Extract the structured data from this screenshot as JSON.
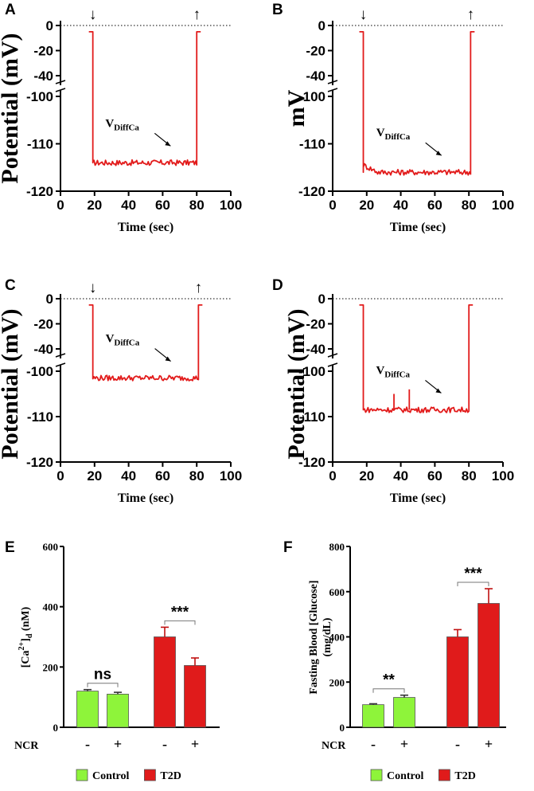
{
  "chart_data": [
    {
      "panel": "A",
      "type": "line",
      "ylabel": "Potential (mV)",
      "xlabel": "Time (sec)",
      "xticks": [
        "0",
        "20",
        "40",
        "60",
        "80",
        "100"
      ],
      "yticks_top": [
        "0",
        "-20",
        "-40"
      ],
      "yticks_bottom": [
        "-100",
        "-110",
        "-120"
      ],
      "xlim": [
        0,
        100
      ],
      "ylim_top": [
        -50,
        0
      ],
      "ylim_bottom": [
        -120,
        -100
      ],
      "annotation": {
        "main": "V",
        "sub": "DiffCa"
      },
      "baseline_mV": -5,
      "plateau_mV": -114,
      "step_on_sec": 19,
      "step_off_sec": 80,
      "markers": {
        "down_arrow": "↓",
        "up_arrow": "↑"
      }
    },
    {
      "panel": "B",
      "type": "line",
      "ylabel": "mV",
      "xlabel": "Time (sec)",
      "xticks": [
        "0",
        "20",
        "40",
        "60",
        "80",
        "100"
      ],
      "yticks_top": [
        "0",
        "-20",
        "-40"
      ],
      "yticks_bottom": [
        "-100",
        "-110",
        "-120"
      ],
      "xlim": [
        0,
        100
      ],
      "ylim_top": [
        -50,
        0
      ],
      "ylim_bottom": [
        -120,
        -100
      ],
      "annotation": {
        "main": "V",
        "sub": "DiffCa"
      },
      "baseline_mV": -5,
      "plateau_mV": -116,
      "step_on_sec": 18,
      "step_off_sec": 81,
      "markers": {
        "down_arrow": "↓",
        "up_arrow": "↑"
      }
    },
    {
      "panel": "C",
      "type": "line",
      "ylabel": "Potential (mV)",
      "xlabel": "Time (sec)",
      "xticks": [
        "0",
        "20",
        "40",
        "60",
        "80",
        "100"
      ],
      "yticks_top": [
        "0",
        "-20",
        "-40"
      ],
      "yticks_bottom": [
        "-100",
        "-110",
        "-120"
      ],
      "xlim": [
        0,
        100
      ],
      "ylim_top": [
        -50,
        0
      ],
      "ylim_bottom": [
        -120,
        -100
      ],
      "annotation": {
        "main": "V",
        "sub": "DiffCa"
      },
      "baseline_mV": -5,
      "plateau_mV": -101.5,
      "step_on_sec": 19,
      "step_off_sec": 81,
      "markers": {
        "down_arrow": "↓",
        "up_arrow": "↑"
      }
    },
    {
      "panel": "D",
      "type": "line",
      "ylabel": "Potential (mV)",
      "xlabel": "Time (sec)",
      "xticks": [
        "0",
        "20",
        "40",
        "60",
        "80",
        "100"
      ],
      "yticks_top": [
        "0",
        "-20",
        "-40"
      ],
      "yticks_bottom": [
        "-100",
        "-110",
        "-120"
      ],
      "xlim": [
        0,
        100
      ],
      "ylim_top": [
        -50,
        0
      ],
      "ylim_bottom": [
        -120,
        -100
      ],
      "annotation": {
        "main": "V",
        "sub": "DiffCa"
      },
      "baseline_mV": -5,
      "plateau_mV": -108.5,
      "step_on_sec": 18,
      "step_off_sec": 80,
      "markers": null
    },
    {
      "panel": "E",
      "type": "bar",
      "ylabel": {
        "pre": "[Ca",
        "sup": "2+",
        "mid": "]",
        "sub": "d",
        "post": " (nM)"
      },
      "yticks": [
        "0",
        "200",
        "400",
        "600"
      ],
      "ylim": [
        0,
        600
      ],
      "ncr_label": "NCR",
      "categories": [
        "-",
        "+",
        "-",
        "+"
      ],
      "groups": [
        "Control",
        "Control",
        "T2D",
        "T2D"
      ],
      "values": [
        120,
        110,
        300,
        205
      ],
      "errors": [
        5,
        6,
        32,
        25
      ],
      "significance": [
        {
          "text": "ns",
          "bars": [
            0,
            1
          ]
        },
        {
          "text": "***",
          "bars": [
            2,
            3
          ]
        }
      ],
      "legend": [
        {
          "name": "Control",
          "color": "#8ef43a"
        },
        {
          "name": "T2D",
          "color": "#e01b1b"
        }
      ]
    },
    {
      "panel": "F",
      "type": "bar",
      "ylabel_lines": [
        "Fasting Blood [Glucose]",
        "(mg/dL)"
      ],
      "yticks": [
        "0",
        "200",
        "400",
        "600",
        "800"
      ],
      "ylim": [
        0,
        800
      ],
      "ncr_label": "NCR",
      "categories": [
        "-",
        "+",
        "-",
        "+"
      ],
      "groups": [
        "Control",
        "Control",
        "T2D",
        "T2D"
      ],
      "values": [
        100,
        132,
        400,
        548
      ],
      "errors": [
        4,
        10,
        32,
        65
      ],
      "significance": [
        {
          "text": "**",
          "bars": [
            0,
            1
          ]
        },
        {
          "text": "***",
          "bars": [
            2,
            3
          ]
        }
      ],
      "legend": [
        {
          "name": "Control",
          "color": "#8ef43a"
        },
        {
          "name": "T2D",
          "color": "#e01b1b"
        }
      ]
    }
  ],
  "colors": {
    "trace": "#e21b1b",
    "control": "#8ef43a",
    "t2d": "#e01b1b"
  }
}
